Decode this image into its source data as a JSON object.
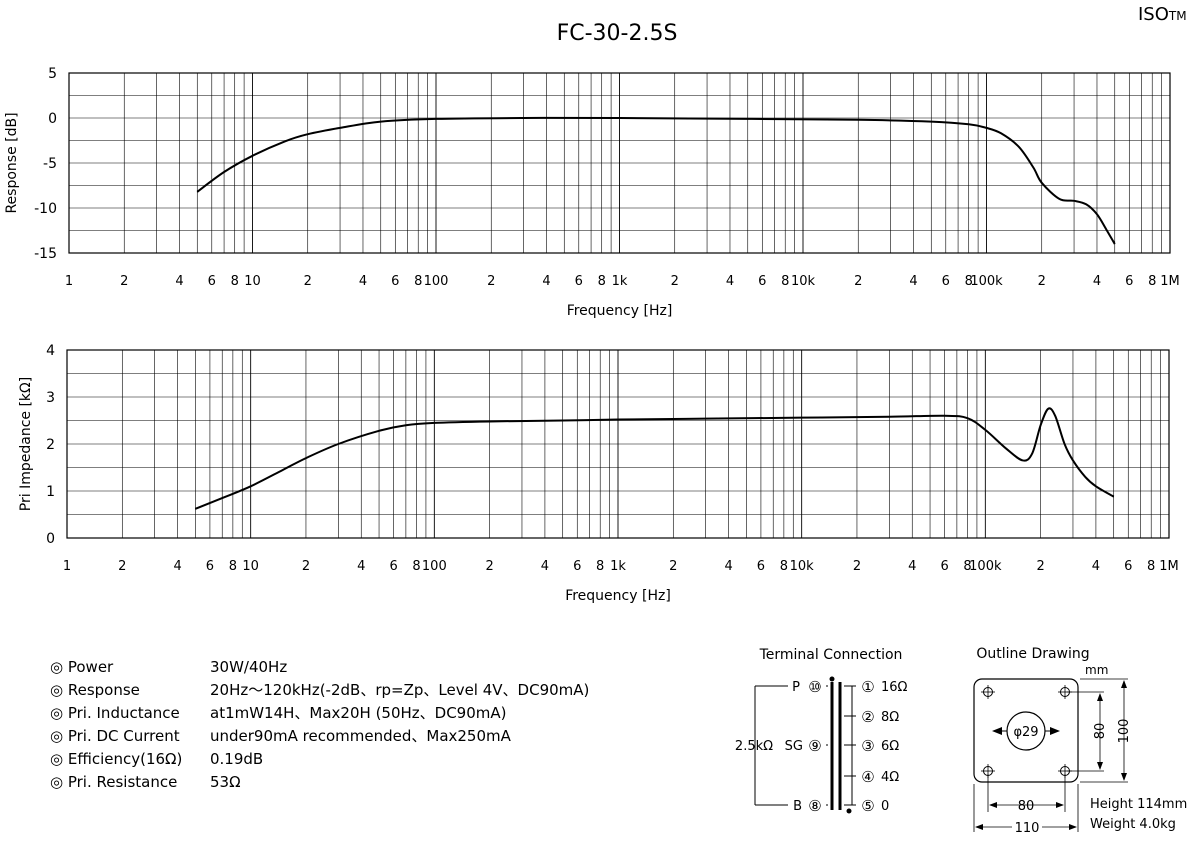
{
  "brand": {
    "text": "ISO",
    "suffix": "TM"
  },
  "title": "FC-30-2.5S",
  "chart_data": [
    {
      "type": "line",
      "xlabel": "Frequency [Hz]",
      "ylabel": "Response [dB]",
      "xscale": "log",
      "xlim": [
        1,
        1000000
      ],
      "ylim": [
        -15,
        5
      ],
      "yticks": [
        5,
        0,
        -5,
        -10,
        -15
      ],
      "xtick_labels": [
        {
          "v": 1,
          "t": "1"
        },
        {
          "v": 2,
          "t": "2"
        },
        {
          "v": 4,
          "t": "4"
        },
        {
          "v": 6,
          "t": "6"
        },
        {
          "v": 8,
          "t": "8"
        },
        {
          "v": 10,
          "t": "10"
        },
        {
          "v": 20,
          "t": "2"
        },
        {
          "v": 40,
          "t": "4"
        },
        {
          "v": 60,
          "t": "6"
        },
        {
          "v": 80,
          "t": "8"
        },
        {
          "v": 100,
          "t": "100"
        },
        {
          "v": 200,
          "t": "2"
        },
        {
          "v": 400,
          "t": "4"
        },
        {
          "v": 600,
          "t": "6"
        },
        {
          "v": 800,
          "t": "8"
        },
        {
          "v": 1000,
          "t": "1k"
        },
        {
          "v": 2000,
          "t": "2"
        },
        {
          "v": 4000,
          "t": "4"
        },
        {
          "v": 6000,
          "t": "6"
        },
        {
          "v": 8000,
          "t": "8"
        },
        {
          "v": 10000,
          "t": "10k"
        },
        {
          "v": 20000,
          "t": "2"
        },
        {
          "v": 40000,
          "t": "4"
        },
        {
          "v": 60000,
          "t": "6"
        },
        {
          "v": 80000,
          "t": "8"
        },
        {
          "v": 100000,
          "t": "100k"
        },
        {
          "v": 200000,
          "t": "2"
        },
        {
          "v": 400000,
          "t": "4"
        },
        {
          "v": 600000,
          "t": "6"
        },
        {
          "v": 800000,
          "t": "8"
        },
        {
          "v": 1000000,
          "t": "1M"
        }
      ],
      "grid": true,
      "series": [
        {
          "x": [
            5,
            7,
            10,
            15,
            20,
            30,
            50,
            100,
            300,
            1000,
            5000,
            20000,
            50000,
            80000,
            100000,
            120000,
            150000,
            180000,
            200000,
            250000,
            300000,
            350000,
            400000,
            450000,
            500000
          ],
          "y": [
            -8.2,
            -6,
            -4.2,
            -2.6,
            -1.8,
            -1.1,
            -0.4,
            -0.1,
            0,
            0,
            -0.1,
            -0.2,
            -0.4,
            -0.7,
            -1.1,
            -1.7,
            -3.2,
            -5.5,
            -7.2,
            -9,
            -9.2,
            -9.6,
            -10.7,
            -12.4,
            -14
          ]
        }
      ]
    },
    {
      "type": "line",
      "xlabel": "Frequency [Hz]",
      "ylabel": "Pri Impedance [kΩ]",
      "xscale": "log",
      "xlim": [
        1,
        1000000
      ],
      "ylim": [
        0,
        4
      ],
      "yticks": [
        4,
        3,
        2,
        1,
        0
      ],
      "xtick_labels": [
        {
          "v": 1,
          "t": "1"
        },
        {
          "v": 2,
          "t": "2"
        },
        {
          "v": 4,
          "t": "4"
        },
        {
          "v": 6,
          "t": "6"
        },
        {
          "v": 8,
          "t": "8"
        },
        {
          "v": 10,
          "t": "10"
        },
        {
          "v": 20,
          "t": "2"
        },
        {
          "v": 40,
          "t": "4"
        },
        {
          "v": 60,
          "t": "6"
        },
        {
          "v": 80,
          "t": "8"
        },
        {
          "v": 100,
          "t": "100"
        },
        {
          "v": 200,
          "t": "2"
        },
        {
          "v": 400,
          "t": "4"
        },
        {
          "v": 600,
          "t": "6"
        },
        {
          "v": 800,
          "t": "8"
        },
        {
          "v": 1000,
          "t": "1k"
        },
        {
          "v": 2000,
          "t": "2"
        },
        {
          "v": 4000,
          "t": "4"
        },
        {
          "v": 6000,
          "t": "6"
        },
        {
          "v": 8000,
          "t": "8"
        },
        {
          "v": 10000,
          "t": "10k"
        },
        {
          "v": 20000,
          "t": "2"
        },
        {
          "v": 40000,
          "t": "4"
        },
        {
          "v": 60000,
          "t": "6"
        },
        {
          "v": 80000,
          "t": "8"
        },
        {
          "v": 100000,
          "t": "100k"
        },
        {
          "v": 200000,
          "t": "2"
        },
        {
          "v": 400000,
          "t": "4"
        },
        {
          "v": 600000,
          "t": "6"
        },
        {
          "v": 800000,
          "t": "8"
        },
        {
          "v": 1000000,
          "t": "1M"
        }
      ],
      "grid": true,
      "series": [
        {
          "x": [
            5,
            7,
            10,
            15,
            20,
            30,
            50,
            70,
            100,
            200,
            500,
            1000,
            3000,
            10000,
            30000,
            60000,
            80000,
            100000,
            130000,
            160000,
            180000,
            200000,
            220000,
            240000,
            270000,
            300000,
            350000,
            400000,
            500000
          ],
          "y": [
            0.62,
            0.85,
            1.1,
            1.45,
            1.7,
            2.0,
            2.28,
            2.4,
            2.45,
            2.48,
            2.5,
            2.52,
            2.54,
            2.56,
            2.58,
            2.6,
            2.55,
            2.3,
            1.9,
            1.65,
            1.8,
            2.4,
            2.75,
            2.6,
            2.0,
            1.65,
            1.3,
            1.1,
            0.88
          ]
        }
      ]
    }
  ],
  "specs": [
    {
      "label": "◎ Power",
      "value": "30W/40Hz"
    },
    {
      "label": "◎ Response",
      "value": "20Hz～120kHz(-2dB、rp=Zp、Level 4V、DC90mA)"
    },
    {
      "label": "◎ Pri. Inductance",
      "value": " at1mW14H、Max20H (50Hz、DC90mA)"
    },
    {
      "label": "◎ Pri. DC Current",
      "value": " under90mA recommended、Max250mA"
    },
    {
      "label": "◎ Efficiency(16Ω)",
      "value": " 0.19dB"
    },
    {
      "label": "◎ Pri. Resistance",
      "value": "53Ω"
    }
  ],
  "terminal": {
    "title": "Terminal Connection",
    "impedance": "2.5kΩ",
    "primary": [
      {
        "name": "P",
        "num": "⑩"
      },
      {
        "name": "SG",
        "num": "⑨"
      },
      {
        "name": "B",
        "num": "⑧"
      }
    ],
    "secondary": [
      {
        "num": "①",
        "value": "16Ω"
      },
      {
        "num": "②",
        "value": "8Ω"
      },
      {
        "num": "③",
        "value": "6Ω"
      },
      {
        "num": "④",
        "value": "4Ω"
      },
      {
        "num": "⑤",
        "value": "0"
      }
    ]
  },
  "outline": {
    "title": "Outline Drawing",
    "unit": "mm",
    "hole": "φ29",
    "dim_inner_h": "80",
    "dim_outer_h": "100",
    "dim_inner_w": "80",
    "dim_outer_w": "110",
    "height": "Height 114mm",
    "weight": "Weight 4.0kg"
  }
}
